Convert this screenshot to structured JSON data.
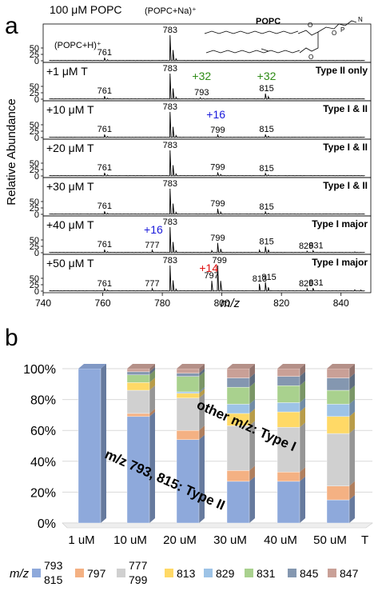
{
  "panel_a": {
    "letter": "a",
    "ylabel": "Relative Abundance",
    "xlabel": "m/z",
    "xticks": [
      "740",
      "760",
      "780",
      "800",
      "820",
      "840"
    ],
    "yticks": [
      "0",
      "25",
      "50"
    ],
    "sample_header": "100 μM POPC",
    "peak_labels": {
      "h": "(POPC+H)⁺",
      "na": "(POPC+Na)⁺"
    },
    "popc_label": "POPC",
    "rows": [
      {
        "cond": "",
        "type": "",
        "labels": [
          {
            "text": "761",
            "mz": 760.6
          },
          {
            "text": "783",
            "mz": 782.6
          }
        ],
        "mods": []
      },
      {
        "cond": "+1 μM T",
        "type": "Type II only",
        "labels": [
          {
            "text": "761",
            "mz": 760.6
          },
          {
            "text": "783",
            "mz": 782.6
          },
          {
            "text": "793",
            "mz": 793.2
          },
          {
            "text": "815",
            "mz": 815.0
          }
        ],
        "mods": [
          {
            "text": "+32",
            "mz": 793.2,
            "color": "#2e8b16"
          },
          {
            "text": "+32",
            "mz": 815.0,
            "color": "#2e8b16"
          }
        ]
      },
      {
        "cond": "+10 μM T",
        "type": "Type I & II",
        "labels": [
          {
            "text": "761",
            "mz": 760.6
          },
          {
            "text": "783",
            "mz": 782.6
          },
          {
            "text": "799",
            "mz": 798.6
          },
          {
            "text": "815",
            "mz": 815.0
          }
        ],
        "mods": [
          {
            "text": "+16",
            "mz": 798.0,
            "color": "#1a1adb"
          }
        ]
      },
      {
        "cond": "+20 μM T",
        "type": "Type I & II",
        "labels": [
          {
            "text": "761",
            "mz": 760.6
          },
          {
            "text": "783",
            "mz": 782.6
          },
          {
            "text": "799",
            "mz": 798.6
          },
          {
            "text": "815",
            "mz": 815.0
          }
        ],
        "mods": []
      },
      {
        "cond": "+30 μM T",
        "type": "Type I & II",
        "labels": [
          {
            "text": "761",
            "mz": 760.6
          },
          {
            "text": "783",
            "mz": 782.6
          },
          {
            "text": "799",
            "mz": 798.6
          },
          {
            "text": "815",
            "mz": 815.0
          }
        ],
        "mods": []
      },
      {
        "cond": "+40 μM T",
        "type": "Type I major",
        "labels": [
          {
            "text": "761",
            "mz": 760.6
          },
          {
            "text": "777",
            "mz": 776.6
          },
          {
            "text": "783",
            "mz": 782.6
          },
          {
            "text": "799",
            "mz": 798.6
          },
          {
            "text": "815",
            "mz": 815.0
          },
          {
            "text": "829",
            "mz": 828.3
          },
          {
            "text": "831",
            "mz": 831.6
          }
        ],
        "mods": [
          {
            "text": "+16",
            "mz": 777.0,
            "color": "#1a1adb"
          }
        ]
      },
      {
        "cond": "+50 μM T",
        "type": "Type I major",
        "labels": [
          {
            "text": "761",
            "mz": 760.6
          },
          {
            "text": "777",
            "mz": 776.6
          },
          {
            "text": "783",
            "mz": 782.6
          },
          {
            "text": "797",
            "mz": 796.5
          },
          {
            "text": "799",
            "mz": 799.2
          },
          {
            "text": "813",
            "mz": 812.7
          },
          {
            "text": "815",
            "mz": 815.8
          },
          {
            "text": "829",
            "mz": 828.3
          },
          {
            "text": "831",
            "mz": 831.6
          }
        ],
        "mods": [
          {
            "text": "+14",
            "mz": 795.6,
            "color": "#e01010"
          }
        ]
      }
    ]
  },
  "panel_b": {
    "letter": "b",
    "legend_title": "m/z",
    "annotation_other": "other m/z: Type I",
    "annotation_main": "m/z 793, 815: Type II",
    "x_unit": "T"
  },
  "chart_data": [
    {
      "type": "line",
      "title": "",
      "xlabel": "m/z",
      "ylabel": "Relative Abundance",
      "xlim": [
        740,
        850
      ],
      "ylim": [
        0,
        100
      ],
      "series": [
        {
          "name": "100 μM POPC",
          "peaks": [
            [
              760.6,
              12
            ],
            [
              761.6,
              4
            ],
            [
              782.6,
              100
            ],
            [
              783.6,
              42
            ],
            [
              784.6,
              8
            ]
          ]
        },
        {
          "name": "+1 μM T",
          "peaks": [
            [
              760.6,
              12
            ],
            [
              761.6,
              4
            ],
            [
              782.6,
              100
            ],
            [
              783.6,
              42
            ],
            [
              784.6,
              8
            ],
            [
              792.8,
              6
            ],
            [
              793.8,
              3
            ],
            [
              814.6,
              22
            ],
            [
              815.6,
              10
            ]
          ]
        },
        {
          "name": "+10 μM T",
          "peaks": [
            [
              760.6,
              12
            ],
            [
              761.6,
              4
            ],
            [
              782.6,
              100
            ],
            [
              783.6,
              42
            ],
            [
              784.6,
              8
            ],
            [
              798.6,
              10
            ],
            [
              799.6,
              4
            ],
            [
              814.6,
              12
            ],
            [
              815.6,
              5
            ]
          ]
        },
        {
          "name": "+20 μM T",
          "peaks": [
            [
              760.6,
              12
            ],
            [
              761.6,
              4
            ],
            [
              782.6,
              100
            ],
            [
              783.6,
              42
            ],
            [
              784.6,
              8
            ],
            [
              798.6,
              14
            ],
            [
              799.6,
              6
            ],
            [
              814.6,
              10
            ],
            [
              815.6,
              4
            ]
          ]
        },
        {
          "name": "+30 μM T",
          "peaks": [
            [
              760.6,
              12
            ],
            [
              761.6,
              4
            ],
            [
              782.6,
              100
            ],
            [
              783.6,
              42
            ],
            [
              784.6,
              8
            ],
            [
              798.6,
              22
            ],
            [
              799.6,
              9
            ],
            [
              814.6,
              10
            ],
            [
              815.6,
              4
            ]
          ]
        },
        {
          "name": "+40 μM T",
          "peaks": [
            [
              760.6,
              12
            ],
            [
              761.6,
              4
            ],
            [
              776.6,
              10
            ],
            [
              782.6,
              100
            ],
            [
              783.6,
              42
            ],
            [
              784.6,
              8
            ],
            [
              796.6,
              8
            ],
            [
              798.6,
              38
            ],
            [
              799.6,
              15
            ],
            [
              812.6,
              10
            ],
            [
              814.6,
              24
            ],
            [
              815.6,
              12
            ],
            [
              828.6,
              6
            ],
            [
              830.6,
              8
            ],
            [
              844.6,
              3
            ]
          ]
        },
        {
          "name": "+50 μM T",
          "peaks": [
            [
              760.6,
              10
            ],
            [
              761.6,
              4
            ],
            [
              776.6,
              10
            ],
            [
              782.6,
              100
            ],
            [
              783.6,
              42
            ],
            [
              784.6,
              8
            ],
            [
              796.6,
              40
            ],
            [
              798.6,
              100
            ],
            [
              799.6,
              40
            ],
            [
              812.6,
              28
            ],
            [
              814.6,
              35
            ],
            [
              815.6,
              15
            ],
            [
              828.6,
              10
            ],
            [
              830.6,
              12
            ],
            [
              844.6,
              5
            ],
            [
              846.6,
              4
            ]
          ]
        }
      ]
    },
    {
      "type": "bar",
      "stacked": true,
      "title": "",
      "xlabel": "",
      "ylabel": "",
      "categories": [
        "1 uM",
        "10 uM",
        "20 uM",
        "30 uM",
        "40 uM",
        "50 uM"
      ],
      "yticks": [
        "0%",
        "20%",
        "40%",
        "60%",
        "80%",
        "100%"
      ],
      "ylim": [
        0,
        100
      ],
      "legend_position": "bottom",
      "series": [
        {
          "name": "793 815",
          "label_lines": [
            "793",
            "815"
          ],
          "color": "#8ea9db",
          "values": [
            100,
            69,
            54,
            27,
            27,
            15
          ]
        },
        {
          "name": "797",
          "label_lines": [
            "797"
          ],
          "color": "#f4b183",
          "values": [
            0,
            2,
            6,
            7,
            6,
            9
          ]
        },
        {
          "name": "777 799",
          "label_lines": [
            "777",
            "799"
          ],
          "color": "#d0d0d0",
          "values": [
            0,
            15,
            21,
            29,
            29,
            34
          ]
        },
        {
          "name": "813",
          "label_lines": [
            "813"
          ],
          "color": "#ffd966",
          "values": [
            0,
            5,
            3,
            8,
            10,
            11
          ]
        },
        {
          "name": "829",
          "label_lines": [
            "829"
          ],
          "color": "#9dc3e6",
          "values": [
            0,
            0,
            1,
            6,
            6,
            8
          ]
        },
        {
          "name": "831",
          "label_lines": [
            "831"
          ],
          "color": "#a9d18e",
          "values": [
            0,
            5,
            10,
            11,
            11,
            9
          ]
        },
        {
          "name": "845",
          "label_lines": [
            "845"
          ],
          "color": "#8497b0",
          "values": [
            0,
            2,
            2,
            6,
            6,
            8
          ]
        },
        {
          "name": "847",
          "label_lines": [
            "847"
          ],
          "color": "#c9a097",
          "values": [
            0,
            2,
            3,
            6,
            5,
            6
          ]
        }
      ]
    }
  ]
}
